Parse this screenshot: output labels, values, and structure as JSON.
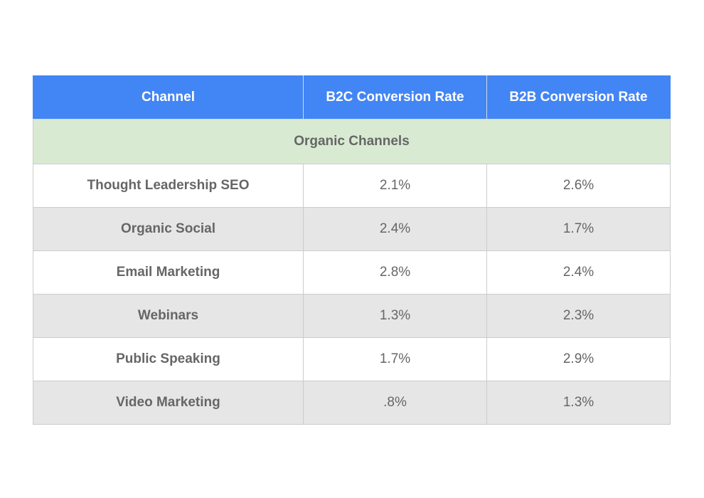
{
  "table": {
    "headers": [
      "Channel",
      "B2C Conversion Rate",
      "B2B Conversion Rate"
    ],
    "section_label": "Organic Channels",
    "rows": [
      {
        "channel": "Thought Leadership SEO",
        "b2c": "2.1%",
        "b2b": "2.6%"
      },
      {
        "channel": "Organic Social",
        "b2c": "2.4%",
        "b2b": "1.7%"
      },
      {
        "channel": "Email Marketing",
        "b2c": "2.8%",
        "b2b": "2.4%"
      },
      {
        "channel": "Webinars",
        "b2c": "1.3%",
        "b2b": "2.3%"
      },
      {
        "channel": "Public Speaking",
        "b2c": "1.7%",
        "b2b": "2.9%"
      },
      {
        "channel": "Video Marketing",
        "b2c": ".8%",
        "b2b": "1.3%"
      }
    ]
  },
  "colors": {
    "header_bg": "#4285f4",
    "section_bg": "#d9ead3",
    "row_alt_bg": "#e6e6e6",
    "text": "#666666"
  }
}
